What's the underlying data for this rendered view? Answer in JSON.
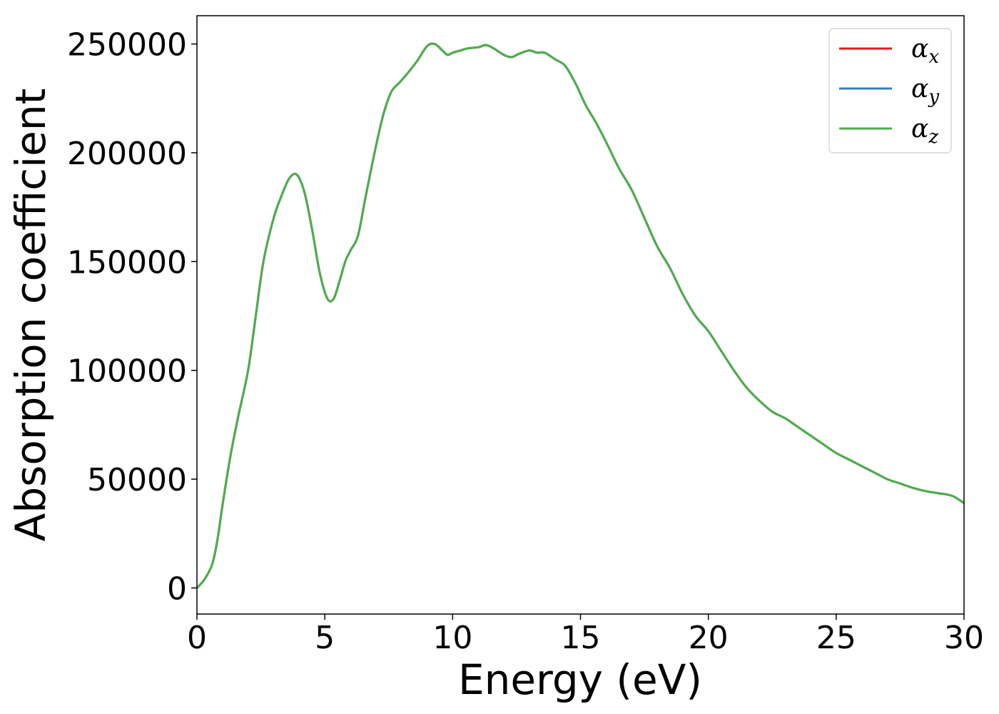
{
  "chart_data": {
    "type": "line",
    "title": "",
    "xlabel": "Energy (eV)",
    "ylabel": "Absorption coefficient",
    "xlim": [
      0,
      30
    ],
    "ylim": [
      -12000,
      263000
    ],
    "grid": false,
    "legend_position": "top-right",
    "x_ticks": [
      0,
      5,
      10,
      15,
      20,
      25,
      30
    ],
    "y_ticks": [
      0,
      50000,
      100000,
      150000,
      200000,
      250000
    ],
    "x_tick_labels": [
      "0",
      "5",
      "10",
      "15",
      "20",
      "25",
      "30"
    ],
    "y_tick_labels": [
      "0",
      "50000",
      "100000",
      "150000",
      "200000",
      "250000"
    ],
    "x": [
      0,
      0.3,
      0.6,
      0.8,
      1.0,
      1.3,
      1.6,
      2.0,
      2.3,
      2.6,
      3.0,
      3.3,
      3.6,
      3.9,
      4.2,
      4.5,
      4.8,
      5.1,
      5.35,
      5.6,
      5.8,
      6.0,
      6.3,
      6.6,
      7.0,
      7.3,
      7.6,
      7.9,
      8.2,
      8.6,
      9.0,
      9.3,
      9.6,
      9.8,
      10.0,
      10.3,
      10.6,
      11.0,
      11.3,
      11.6,
      12.0,
      12.3,
      12.6,
      13.0,
      13.3,
      13.6,
      14.0,
      14.4,
      14.8,
      15.2,
      15.6,
      16.0,
      16.5,
      17.0,
      17.5,
      18.0,
      18.5,
      19.0,
      19.5,
      20.0,
      20.5,
      21.0,
      21.5,
      22.0,
      22.5,
      23.0,
      23.5,
      24.0,
      24.5,
      25.0,
      25.5,
      26.0,
      26.5,
      27.0,
      27.5,
      28.0,
      28.5,
      29.0,
      29.3,
      29.6,
      30.0
    ],
    "series": [
      {
        "name": "α_x",
        "label_base": "α",
        "label_sub": "x",
        "color": "#e41a1c",
        "values": [
          0,
          4000,
          11000,
          22000,
          38000,
          60000,
          78000,
          100000,
          125000,
          150000,
          170000,
          180000,
          188000,
          190000,
          182000,
          165000,
          145000,
          133000,
          133000,
          142000,
          150000,
          155000,
          162000,
          180000,
          203000,
          218000,
          228000,
          232000,
          236000,
          242000,
          249000,
          250000,
          247000,
          245000,
          246000,
          247000,
          248000,
          248500,
          249500,
          248000,
          245000,
          244000,
          245500,
          247000,
          246000,
          246000,
          243000,
          240000,
          232000,
          222000,
          214000,
          205000,
          193000,
          183000,
          170000,
          157000,
          147000,
          135000,
          125000,
          118000,
          109000,
          100000,
          92000,
          86000,
          81000,
          78000,
          74000,
          70000,
          66000,
          62000,
          59000,
          56000,
          53000,
          50000,
          48000,
          46000,
          44500,
          43500,
          43000,
          42000,
          39000
        ]
      },
      {
        "name": "α_y",
        "label_base": "α",
        "label_sub": "y",
        "color": "#377eb8",
        "values": [
          0,
          4000,
          11000,
          22000,
          38000,
          60000,
          78000,
          100000,
          125000,
          150000,
          170000,
          180000,
          188000,
          190000,
          182000,
          165000,
          145000,
          133000,
          133000,
          142000,
          150000,
          155000,
          162000,
          180000,
          203000,
          218000,
          228000,
          232000,
          236000,
          242000,
          249000,
          250000,
          247000,
          245000,
          246000,
          247000,
          248000,
          248500,
          249500,
          248000,
          245000,
          244000,
          245500,
          247000,
          246000,
          246000,
          243000,
          240000,
          232000,
          222000,
          214000,
          205000,
          193000,
          183000,
          170000,
          157000,
          147000,
          135000,
          125000,
          118000,
          109000,
          100000,
          92000,
          86000,
          81000,
          78000,
          74000,
          70000,
          66000,
          62000,
          59000,
          56000,
          53000,
          50000,
          48000,
          46000,
          44500,
          43500,
          43000,
          42000,
          39000
        ]
      },
      {
        "name": "α_z",
        "label_base": "α",
        "label_sub": "z",
        "color": "#4daf4a",
        "values": [
          0,
          4000,
          11000,
          22000,
          38000,
          60000,
          78000,
          100000,
          125000,
          150000,
          170000,
          180000,
          188000,
          190000,
          182000,
          165000,
          145000,
          133000,
          133000,
          142000,
          150000,
          155000,
          162000,
          180000,
          203000,
          218000,
          228000,
          232000,
          236000,
          242000,
          249000,
          250000,
          247000,
          245000,
          246000,
          247000,
          248000,
          248500,
          249500,
          248000,
          245000,
          244000,
          245500,
          247000,
          246000,
          246000,
          243000,
          240000,
          232000,
          222000,
          214000,
          205000,
          193000,
          183000,
          170000,
          157000,
          147000,
          135000,
          125000,
          118000,
          109000,
          100000,
          92000,
          86000,
          81000,
          78000,
          74000,
          70000,
          66000,
          62000,
          59000,
          56000,
          53000,
          50000,
          48000,
          46000,
          44500,
          43500,
          43000,
          42000,
          39000
        ]
      }
    ]
  }
}
